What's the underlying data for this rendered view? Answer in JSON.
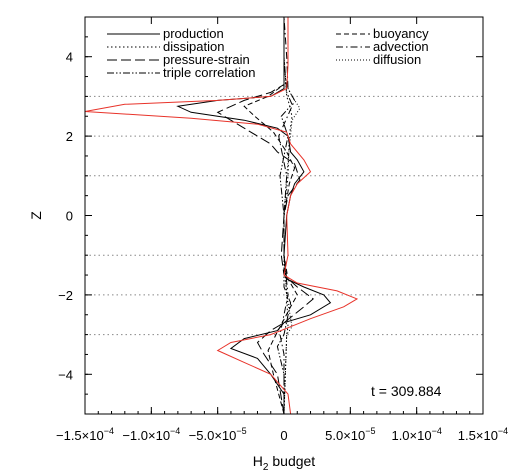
{
  "chart_data": {
    "type": "line",
    "xlabel": "H",
    "xlabel_sub": "2",
    "xlabel_tail": " budget",
    "ylabel": "Z",
    "xlim": [
      -0.00015,
      0.00015
    ],
    "ylim": [
      -5,
      5
    ],
    "x_tick_values": [
      -0.00015,
      -0.0001,
      -5e-05,
      0,
      5e-05,
      0.0001,
      0.00015
    ],
    "x_tick_labels": [
      {
        "mant": "−1.5×10",
        "exp": "−4"
      },
      {
        "mant": "−1.0×10",
        "exp": "−4"
      },
      {
        "mant": "−5.0×10",
        "exp": "−5"
      },
      {
        "mant": "0",
        "exp": ""
      },
      {
        "mant": "5.0×10",
        "exp": "−5"
      },
      {
        "mant": "1.0×10",
        "exp": "−4"
      },
      {
        "mant": "1.5×10",
        "exp": "−4"
      }
    ],
    "y_tick_values": [
      -4,
      -2,
      0,
      2,
      4
    ],
    "y_tick_labels": [
      "−4",
      "−2",
      "0",
      "2",
      "4"
    ],
    "reference_lines_z": [
      3,
      2,
      1,
      -1,
      -2,
      -3
    ],
    "annotation": "t = 309.884",
    "legend_placement": "top",
    "series": [
      {
        "name": "production",
        "style": "solid",
        "color": "#000000",
        "points": [
          [
            0,
            -5
          ],
          [
            0,
            -4.5
          ],
          [
            -1e-05,
            -4
          ],
          [
            -2e-05,
            -3.6
          ],
          [
            -4e-05,
            -3.35
          ],
          [
            -3e-05,
            -3.1
          ],
          [
            -5e-06,
            -2.9
          ],
          [
            0,
            -2.7
          ],
          [
            2e-05,
            -2.5
          ],
          [
            3.5e-05,
            -2.2
          ],
          [
            3e-05,
            -2
          ],
          [
            1.5e-05,
            -1.8
          ],
          [
            2e-06,
            -1.6
          ],
          [
            0,
            -1
          ],
          [
            2e-06,
            0
          ],
          [
            5e-06,
            0.5
          ],
          [
            8e-06,
            0.8
          ],
          [
            1.5e-05,
            1.1
          ],
          [
            1e-05,
            1.4
          ],
          [
            5e-06,
            1.6
          ],
          [
            3e-06,
            2
          ],
          [
            -5e-06,
            2.2
          ],
          [
            -3e-05,
            2.4
          ],
          [
            -7e-05,
            2.6
          ],
          [
            -8e-05,
            2.75
          ],
          [
            -5e-05,
            2.9
          ],
          [
            -1e-05,
            3
          ],
          [
            0,
            3.2
          ],
          [
            0,
            4
          ],
          [
            0,
            5
          ]
        ]
      },
      {
        "name": "dissipation",
        "style": "dotted",
        "color": "#000000",
        "points": [
          [
            0,
            -5
          ],
          [
            2e-06,
            -3
          ],
          [
            3e-06,
            -2.8
          ],
          [
            2e-06,
            -2
          ],
          [
            0,
            -1
          ],
          [
            0,
            0
          ],
          [
            3e-06,
            1
          ],
          [
            4e-06,
            2
          ],
          [
            6e-06,
            2.5
          ],
          [
            4e-06,
            2.8
          ],
          [
            2e-06,
            3
          ],
          [
            0,
            4
          ],
          [
            0,
            5
          ]
        ]
      },
      {
        "name": "pressure-strain",
        "style": "dashed-long",
        "color": "#000000",
        "points": [
          [
            0,
            -5
          ],
          [
            -5e-06,
            -4
          ],
          [
            -1.5e-05,
            -3.5
          ],
          [
            -2e-05,
            -3.2
          ],
          [
            -1e-05,
            -2.9
          ],
          [
            0,
            -2.7
          ],
          [
            1.5e-05,
            -2.3
          ],
          [
            2.2e-05,
            -2.1
          ],
          [
            1e-05,
            -1.8
          ],
          [
            0,
            -1.5
          ],
          [
            -2e-06,
            -1
          ],
          [
            0,
            0
          ],
          [
            3e-06,
            0.5
          ],
          [
            1.2e-05,
            0.9
          ],
          [
            8e-06,
            1.3
          ],
          [
            -5e-06,
            1.6
          ],
          [
            -1e-05,
            1.8
          ],
          [
            -2e-05,
            2
          ],
          [
            -3.5e-05,
            2.3
          ],
          [
            -5e-05,
            2.6
          ],
          [
            -3e-05,
            2.9
          ],
          [
            -1e-05,
            3.1
          ],
          [
            0,
            3.3
          ],
          [
            0,
            5
          ]
        ]
      },
      {
        "name": "triple correlation",
        "style": "dash-dot-dot",
        "color": "#000000",
        "points": [
          [
            0,
            -5
          ],
          [
            0,
            -4
          ],
          [
            -5e-06,
            -3.3
          ],
          [
            0,
            -3
          ],
          [
            5e-06,
            -2.2
          ],
          [
            0,
            -1.8
          ],
          [
            0,
            0
          ],
          [
            -3e-06,
            1
          ],
          [
            3e-06,
            2
          ],
          [
            -2e-06,
            2.5
          ],
          [
            6e-06,
            2.8
          ],
          [
            2e-06,
            3.1
          ],
          [
            0,
            4
          ],
          [
            0,
            5
          ]
        ]
      },
      {
        "name": "buoyancy",
        "style": "dashed",
        "color": "#000000",
        "points": [
          [
            0,
            -5
          ],
          [
            -8e-06,
            -4
          ],
          [
            -1.2e-05,
            -3.4
          ],
          [
            -6e-06,
            -3
          ],
          [
            5e-06,
            -2.3
          ],
          [
            1e-05,
            -2
          ],
          [
            3e-06,
            -1.6
          ],
          [
            0,
            -1
          ],
          [
            0,
            0
          ],
          [
            4e-06,
            0.8
          ],
          [
            8e-06,
            1.2
          ],
          [
            2e-06,
            1.6
          ],
          [
            -8e-06,
            2.1
          ],
          [
            -2.2e-05,
            2.5
          ],
          [
            -3e-05,
            2.75
          ],
          [
            -1.2e-05,
            3
          ],
          [
            0,
            3.3
          ],
          [
            0,
            5
          ]
        ]
      },
      {
        "name": "advection",
        "style": "dash-dot",
        "color": "#000000",
        "points": [
          [
            0,
            -5
          ],
          [
            0,
            -3.5
          ],
          [
            -3e-06,
            -3
          ],
          [
            3e-06,
            -2
          ],
          [
            0,
            -1
          ],
          [
            0,
            0
          ],
          [
            2e-06,
            1
          ],
          [
            -4e-06,
            2
          ],
          [
            4e-06,
            2.6
          ],
          [
            8e-06,
            2.9
          ],
          [
            3e-06,
            3.2
          ],
          [
            2e-06,
            4
          ],
          [
            0,
            5
          ]
        ]
      },
      {
        "name": "diffusion",
        "style": "dotted-fine",
        "color": "#000000",
        "points": [
          [
            0,
            -5
          ],
          [
            2e-06,
            -3
          ],
          [
            6e-06,
            -2.8
          ],
          [
            2e-06,
            -2
          ],
          [
            0,
            -1
          ],
          [
            0,
            0
          ],
          [
            2e-06,
            1
          ],
          [
            6e-06,
            2.4
          ],
          [
            1.2e-05,
            2.7
          ],
          [
            6e-06,
            3
          ],
          [
            0,
            3.4
          ],
          [
            0,
            5
          ]
        ]
      },
      {
        "name": "",
        "style": "solid",
        "color": "#e8332a",
        "points": [
          [
            5e-06,
            -5
          ],
          [
            3e-06,
            -4.5
          ],
          [
            -1e-05,
            -4
          ],
          [
            -3e-05,
            -3.7
          ],
          [
            -5e-05,
            -3.4
          ],
          [
            -4e-05,
            -3.2
          ],
          [
            -1e-05,
            -3.0
          ],
          [
            5e-06,
            -2.8
          ],
          [
            2e-05,
            -2.6
          ],
          [
            4.5e-05,
            -2.3
          ],
          [
            5.5e-05,
            -2.1
          ],
          [
            4e-05,
            -1.9
          ],
          [
            1e-05,
            -1.7
          ],
          [
            0,
            -1.5
          ],
          [
            3e-06,
            -1
          ],
          [
            2e-06,
            0
          ],
          [
            5e-06,
            0.5
          ],
          [
            1e-05,
            0.8
          ],
          [
            2e-05,
            1.1
          ],
          [
            1.5e-05,
            1.4
          ],
          [
            5e-06,
            1.8
          ],
          [
            2e-06,
            2.1
          ],
          [
            -2e-05,
            2.3
          ],
          [
            -7e-05,
            2.45
          ],
          [
            -0.00015,
            2.62
          ],
          [
            -0.00012,
            2.8
          ],
          [
            -5e-05,
            2.9
          ],
          [
            -1e-05,
            3.0
          ],
          [
            2e-06,
            3.2
          ],
          [
            3e-06,
            3.8
          ],
          [
            3e-06,
            5
          ]
        ]
      }
    ]
  }
}
